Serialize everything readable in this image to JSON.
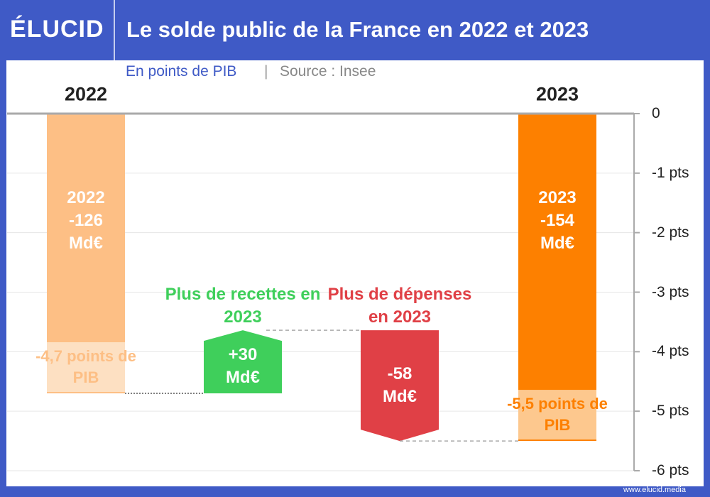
{
  "logo": "ÉLUCID",
  "footer": "www.elucid.media",
  "chart_data": {
    "type": "waterfall",
    "title": "Le solde public de la France en 2022 et 2023",
    "subtitle": "En points de PIB",
    "source": "Source : Insee",
    "categories": [
      "2022",
      "Plus de recettes en 2023",
      "Plus de dépenses en 2023",
      "2023"
    ],
    "kinds": [
      "total",
      "delta",
      "delta",
      "total"
    ],
    "values": [
      -4.7,
      1.06,
      -1.86,
      -5.5
    ],
    "value_labels": [
      "-4,7 points de PIB",
      null,
      null,
      "-5,5 points de PIB"
    ],
    "bar_labels": [
      "2022 -126 Md€",
      "+30 Md€",
      "-58 Md€",
      "2023 -154 Md€"
    ],
    "colors": [
      "#fdbf85",
      "#3fcf5b",
      "#e04046",
      "#fd8000"
    ],
    "ylim": [
      -6,
      0
    ],
    "yticks": [
      0,
      {
        "value": -1,
        "label": "-1 pts"
      },
      {
        "value": -2,
        "label": "-2 pts"
      },
      {
        "value": -3,
        "label": "-3 pts"
      },
      {
        "value": -4,
        "label": "-4 pts"
      },
      {
        "value": -5,
        "label": "-5 pts"
      },
      {
        "value": -6,
        "label": "-6 pts"
      }
    ],
    "grid": true
  }
}
